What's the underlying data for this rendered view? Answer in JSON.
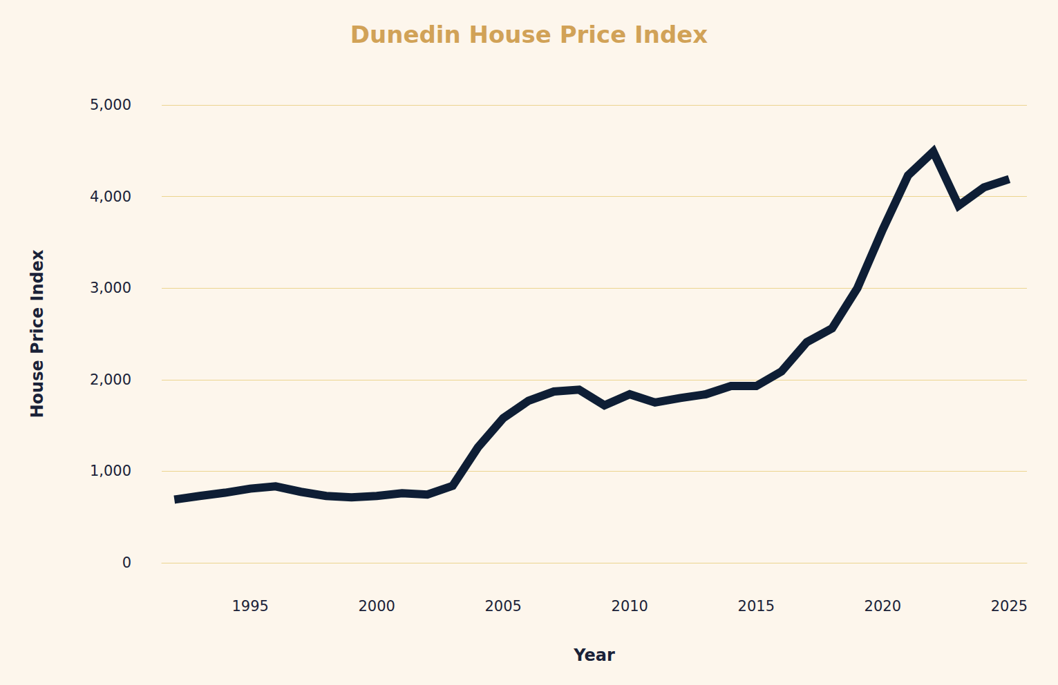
{
  "chart_data": {
    "type": "line",
    "title": "Dunedin House Price Index",
    "x_label": "Year",
    "y_label": "House Price Index",
    "x": [
      1992,
      1993,
      1994,
      1995,
      1996,
      1997,
      1998,
      1999,
      2000,
      2001,
      2002,
      2003,
      2004,
      2005,
      2006,
      2007,
      2008,
      2009,
      2010,
      2011,
      2012,
      2013,
      2014,
      2015,
      2016,
      2017,
      2018,
      2019,
      2020,
      2021,
      2022,
      2023,
      2024,
      2025
    ],
    "values": [
      690,
      730,
      765,
      810,
      835,
      775,
      730,
      715,
      730,
      760,
      745,
      840,
      1260,
      1580,
      1770,
      1870,
      1890,
      1720,
      1840,
      1750,
      1800,
      1840,
      1930,
      1930,
      2090,
      2410,
      2560,
      3000,
      3640,
      4230,
      4490,
      3900,
      4100,
      4190
    ],
    "color": "#0e1e35",
    "xlim": [
      1991.5,
      2025.7
    ],
    "xticks": [
      1995,
      2000,
      2005,
      2010,
      2015,
      2020,
      2025
    ],
    "ylim": [
      0,
      5000
    ],
    "yticks": [
      0,
      {
        "value": 1000,
        "label": "1,000"
      },
      {
        "value": 2000,
        "label": "2,000"
      },
      {
        "value": 3000,
        "label": "3,000"
      },
      {
        "value": 4000,
        "label": "4,000"
      },
      {
        "value": 5000,
        "label": "5,000"
      }
    ],
    "grid": true
  }
}
